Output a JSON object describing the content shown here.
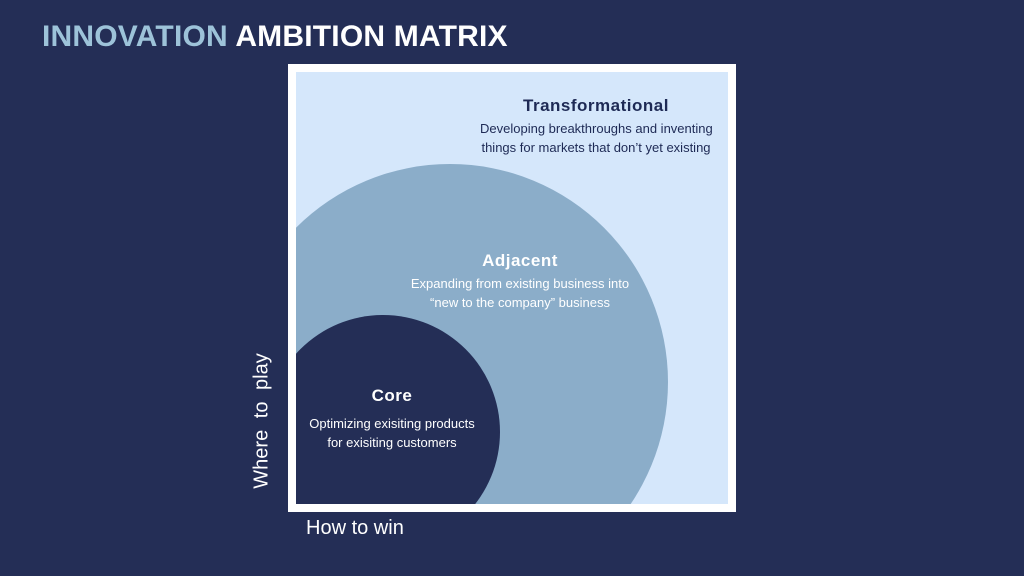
{
  "title": {
    "accent": "INNOVATION",
    "main": "AMBITION MATRIX"
  },
  "zones": {
    "transformational": {
      "heading": "Transformational",
      "line1": "Developing breakthroughs and inventing",
      "line2": "things for markets that don’t yet existing"
    },
    "adjacent": {
      "heading": "Adjacent",
      "line1": "Expanding from existing business into",
      "line2": "“new to the company” business"
    },
    "core": {
      "heading": "Core",
      "line1": "Optimizing exisiting products",
      "line2": "for exisiting customers"
    }
  },
  "axes": {
    "x": "How to win",
    "y": "Where to play"
  },
  "colors": {
    "background": "#242e56",
    "title_accent": "#9dc3d9",
    "outer_zone": "#d5e7fb",
    "adjacent_zone": "#8badc9",
    "core_zone": "#242e56"
  }
}
